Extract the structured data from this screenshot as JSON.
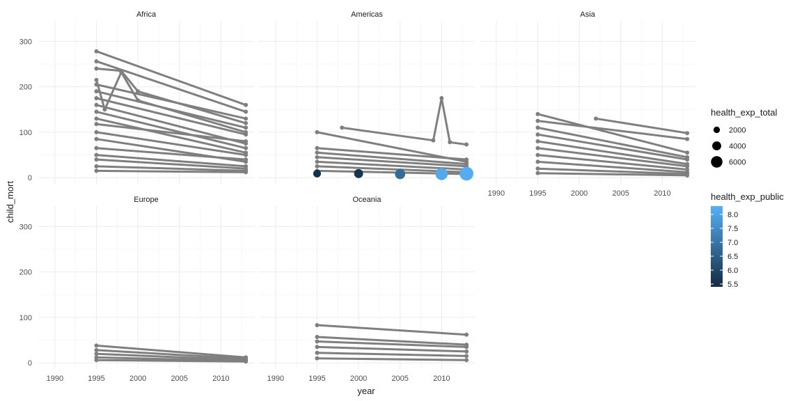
{
  "chart_data": {
    "type": "line",
    "facet_panels": [
      "Africa",
      "Americas",
      "Asia",
      "Europe",
      "Oceania"
    ],
    "xlabel": "year",
    "ylabel": "child_mort",
    "xlim": [
      1988,
      2014
    ],
    "ylim": [
      -15,
      345
    ],
    "x_ticks": [
      1990,
      1995,
      2000,
      2005,
      2010
    ],
    "y_ticks": [
      0,
      100,
      200,
      300
    ],
    "grid": true,
    "line_color": "#7f7f7f",
    "series_lines": {
      "Africa": [
        {
          "x": [
            1995,
            2013
          ],
          "y": [
            278,
            160
          ]
        },
        {
          "x": [
            1995,
            2013
          ],
          "y": [
            256,
            145
          ]
        },
        {
          "x": [
            1995,
            1998,
            2000,
            2013
          ],
          "y": [
            240,
            235,
            190,
            120
          ]
        },
        {
          "x": [
            1995,
            1996,
            1998,
            2000,
            2013
          ],
          "y": [
            215,
            150,
            232,
            170,
            100
          ]
        },
        {
          "x": [
            1995,
            2013
          ],
          "y": [
            205,
            130
          ]
        },
        {
          "x": [
            1995,
            2013
          ],
          "y": [
            190,
            110
          ]
        },
        {
          "x": [
            1995,
            2013
          ],
          "y": [
            175,
            95
          ]
        },
        {
          "x": [
            1995,
            2013
          ],
          "y": [
            160,
            75
          ]
        },
        {
          "x": [
            1995,
            2013
          ],
          "y": [
            145,
            65
          ]
        },
        {
          "x": [
            1995,
            2013
          ],
          "y": [
            130,
            55
          ]
        },
        {
          "x": [
            1995,
            2013
          ],
          "y": [
            118,
            80
          ]
        },
        {
          "x": [
            1995,
            2013
          ],
          "y": [
            100,
            50
          ]
        },
        {
          "x": [
            1995,
            2013
          ],
          "y": [
            85,
            35
          ]
        },
        {
          "x": [
            1995,
            2013
          ],
          "y": [
            65,
            40
          ]
        },
        {
          "x": [
            1995,
            2013
          ],
          "y": [
            50,
            25
          ]
        },
        {
          "x": [
            1995,
            2013
          ],
          "y": [
            40,
            20
          ]
        },
        {
          "x": [
            1995,
            2013
          ],
          "y": [
            25,
            15
          ]
        },
        {
          "x": [
            1995,
            2013
          ],
          "y": [
            15,
            12
          ]
        }
      ],
      "Americas": [
        {
          "x": [
            1995,
            2013
          ],
          "y": [
            100,
            35
          ]
        },
        {
          "x": [
            1998,
            2009,
            2010,
            2011,
            2013
          ],
          "y": [
            110,
            82,
            175,
            78,
            73
          ]
        },
        {
          "x": [
            1995,
            2013
          ],
          "y": [
            65,
            40
          ]
        },
        {
          "x": [
            1995,
            2013
          ],
          "y": [
            55,
            30
          ]
        },
        {
          "x": [
            1995,
            2013
          ],
          "y": [
            45,
            25
          ]
        },
        {
          "x": [
            1995,
            2013
          ],
          "y": [
            35,
            18
          ]
        },
        {
          "x": [
            1995,
            2013
          ],
          "y": [
            25,
            12
          ]
        },
        {
          "x": [
            1995,
            2013
          ],
          "y": [
            15,
            8
          ]
        }
      ],
      "Asia": [
        {
          "x": [
            1995,
            2013
          ],
          "y": [
            140,
            55
          ]
        },
        {
          "x": [
            2002,
            2013
          ],
          "y": [
            130,
            98
          ]
        },
        {
          "x": [
            1995,
            2013
          ],
          "y": [
            125,
            85
          ]
        },
        {
          "x": [
            1995,
            2013
          ],
          "y": [
            110,
            45
          ]
        },
        {
          "x": [
            1995,
            2013
          ],
          "y": [
            95,
            40
          ]
        },
        {
          "x": [
            1995,
            2013
          ],
          "y": [
            80,
            30
          ]
        },
        {
          "x": [
            1995,
            2013
          ],
          "y": [
            65,
            25
          ]
        },
        {
          "x": [
            1995,
            2013
          ],
          "y": [
            50,
            18
          ]
        },
        {
          "x": [
            1995,
            2013
          ],
          "y": [
            35,
            12
          ]
        },
        {
          "x": [
            1995,
            2013
          ],
          "y": [
            20,
            8
          ]
        },
        {
          "x": [
            1995,
            2013
          ],
          "y": [
            10,
            5
          ]
        }
      ],
      "Europe": [
        {
          "x": [
            1995,
            2013
          ],
          "y": [
            38,
            12
          ]
        },
        {
          "x": [
            1995,
            2013
          ],
          "y": [
            28,
            9
          ]
        },
        {
          "x": [
            1995,
            2013
          ],
          "y": [
            20,
            6
          ]
        },
        {
          "x": [
            1995,
            2013
          ],
          "y": [
            12,
            4
          ]
        },
        {
          "x": [
            1995,
            2013
          ],
          "y": [
            6,
            3
          ]
        }
      ],
      "Oceania": [
        {
          "x": [
            1995,
            2013
          ],
          "y": [
            83,
            62
          ]
        },
        {
          "x": [
            1995,
            2013
          ],
          "y": [
            57,
            40
          ]
        },
        {
          "x": [
            1995,
            2013
          ],
          "y": [
            47,
            35
          ]
        },
        {
          "x": [
            1995,
            2013
          ],
          "y": [
            35,
            25
          ]
        },
        {
          "x": [
            1995,
            2013
          ],
          "y": [
            22,
            15
          ]
        },
        {
          "x": [
            1995,
            2013
          ],
          "y": [
            10,
            6
          ]
        }
      ]
    },
    "colored_points": {
      "panel": "Americas",
      "points": [
        {
          "x": 1995,
          "y": 9,
          "health_exp_public": 5.5,
          "health_exp_total": 3000
        },
        {
          "x": 2000,
          "y": 9,
          "health_exp_public": 5.6,
          "health_exp_total": 4000
        },
        {
          "x": 2005,
          "y": 8,
          "health_exp_public": 6.8,
          "health_exp_total": 5000
        },
        {
          "x": 2010,
          "y": 8,
          "health_exp_public": 8.1,
          "health_exp_total": 6500
        },
        {
          "x": 2013,
          "y": 9,
          "health_exp_public": 8.2,
          "health_exp_total": 7800
        }
      ]
    },
    "legend_size": {
      "title": "health_exp_total",
      "entries": [
        {
          "label": "2000",
          "value": 2000
        },
        {
          "label": "4000",
          "value": 4000
        },
        {
          "label": "6000",
          "value": 6000
        }
      ]
    },
    "legend_color": {
      "title": "health_exp_public",
      "range": [
        5.4,
        8.3
      ],
      "ticks": [
        {
          "label": "5.5",
          "value": 5.5
        },
        {
          "label": "6.0",
          "value": 6.0
        },
        {
          "label": "6.5",
          "value": 6.5
        },
        {
          "label": "7.0",
          "value": 7.0
        },
        {
          "label": "7.5",
          "value": 7.5
        },
        {
          "label": "8.0",
          "value": 8.0
        }
      ],
      "low_color": "#132b43",
      "high_color": "#56b1f7"
    },
    "legend_placement": "right"
  }
}
